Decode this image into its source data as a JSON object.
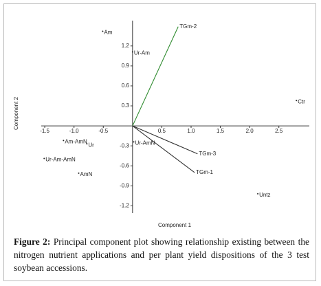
{
  "chart_data": {
    "type": "biplot",
    "xlabel": "Component 1",
    "ylabel": "Component 2",
    "point_labels": [
      "Am",
      "Ur-Am",
      "Ctr",
      "Am-AmN",
      "Ur",
      "Ur-Am-AmN",
      "AmN",
      "Ur-AmN",
      "Untz"
    ],
    "x": [
      -0.51,
      0.0,
      2.8,
      -1.18,
      -0.78,
      -1.51,
      -0.92,
      0.02,
      2.14
    ],
    "values": [
      1.42,
      1.11,
      0.38,
      -0.22,
      -0.27,
      -0.49,
      -0.71,
      -0.24,
      -1.02
    ],
    "point_color": "#222222",
    "vectors": [
      {
        "name": "TGm-2",
        "x": 0.78,
        "y": 1.49,
        "color": "#2e8b2e",
        "label_color": "#1b2a7a"
      },
      {
        "name": "TGm-3",
        "x": 1.11,
        "y": -0.42,
        "color": "#333333",
        "label_color": "#1b2a7a"
      },
      {
        "name": "TGm-1",
        "x": 1.06,
        "y": -0.7,
        "color": "#333333",
        "label_color": "#222222"
      }
    ],
    "xlim": [
      -1.56,
      3.02
    ],
    "ylim": [
      -1.31,
      1.58
    ],
    "xticks": [
      -1.5,
      {
        "value": -1,
        "label": "-1.0"
      },
      -0.5,
      0.5,
      {
        "value": 1,
        "label": "1.0"
      },
      1.5,
      {
        "value": 2,
        "label": "2.0"
      },
      2.5
    ],
    "yticks": [
      1.2,
      0.9,
      0.6,
      0.3,
      -0.3,
      -0.6,
      -0.9,
      -1.2
    ]
  },
  "caption_label": "Figure 2:",
  "caption": "Principal component plot showing relationship existing between the nitrogen nutrient applications and per plant yield dispositions of the 3 test soybean accessions."
}
